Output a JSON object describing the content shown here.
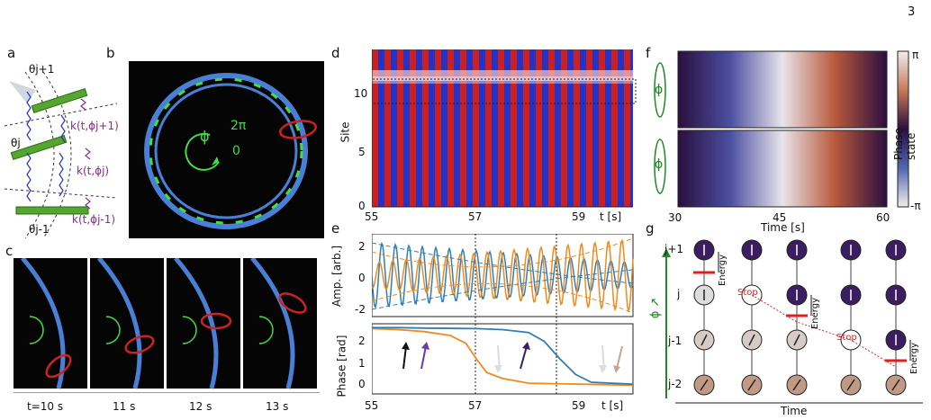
{
  "page_number": "3",
  "panel_letters": [
    "a",
    "b",
    "c",
    "d",
    "e",
    "f",
    "g"
  ],
  "panel_a": {
    "labels": [
      "θj+1",
      "θj",
      "θj-1"
    ],
    "forces": [
      "k(t,ϕj+1)",
      "k(t,ϕj)",
      "k(t,ϕj-1)"
    ]
  },
  "panel_b": {
    "phi": "ϕ",
    "two_pi": "2π",
    "zero": "0"
  },
  "panel_c": {
    "times": [
      "t=10 s",
      "11 s",
      "12 s",
      "13 s"
    ]
  },
  "panel_d": {
    "ylabel": "Site",
    "yticks": [
      "0",
      "5",
      "10"
    ],
    "xticks": [
      "55",
      "57",
      "59"
    ],
    "x_unit": "t [s]"
  },
  "panel_e": {
    "top_ylabel": "Amp. [arb.]",
    "top_yticks": [
      "2",
      "0",
      "-2"
    ],
    "bottom_ylabel": "Phase [rad]",
    "bottom_yticks": [
      "2",
      "1",
      "0"
    ],
    "xticks": [
      "55",
      "57",
      "59"
    ],
    "x_unit": "t [s]"
  },
  "panel_f": {
    "phi": "ϕ",
    "xticks": [
      "30",
      "45",
      "60"
    ],
    "xlabel": "Time [s]",
    "colorbar_label": "Phase state",
    "colorbar_top": "π",
    "colorbar_bottom": "-π"
  },
  "panel_g": {
    "ylabels": [
      "j+1",
      "j",
      "j-1",
      "j-2"
    ],
    "energy": "Energy",
    "stop": "Stop",
    "phi_axis": "ϕ ↗",
    "xlabel": "Time"
  },
  "chart_data": [
    {
      "type": "heatmap",
      "panel": "d",
      "xlabel": "t [s]",
      "ylabel": "Site",
      "xlim": [
        55,
        60
      ],
      "ylim": [
        0,
        13
      ]
    },
    {
      "type": "line",
      "panel": "e-top",
      "ylabel": "Amp. [arb.]",
      "xlim": [
        55,
        60
      ],
      "ylim": [
        -2.5,
        2.5
      ]
    },
    {
      "type": "line",
      "panel": "e-bottom",
      "ylabel": "Phase [rad]",
      "xlim": [
        55,
        60
      ],
      "ylim": [
        -0.8,
        2.8
      ],
      "series": [
        {
          "x": [
            55,
            55.5,
            56,
            56.5,
            56.8,
            57,
            57.2,
            57.5,
            58,
            59,
            60
          ],
          "y": [
            2.55,
            2.5,
            2.4,
            2.2,
            1.8,
            1.0,
            0.3,
            0.0,
            -0.25,
            -0.3,
            -0.35
          ]
        },
        {
          "x": [
            55,
            55.5,
            56,
            57,
            57.5,
            58,
            58.3,
            58.6,
            58.9,
            59.2,
            60
          ],
          "y": [
            2.6,
            2.6,
            2.58,
            2.55,
            2.5,
            2.35,
            1.9,
            1.0,
            0.2,
            -0.2,
            -0.3
          ]
        }
      ]
    },
    {
      "type": "heatmap",
      "panel": "f",
      "xlabel": "Time [s]",
      "xlim": [
        30,
        60
      ]
    }
  ]
}
